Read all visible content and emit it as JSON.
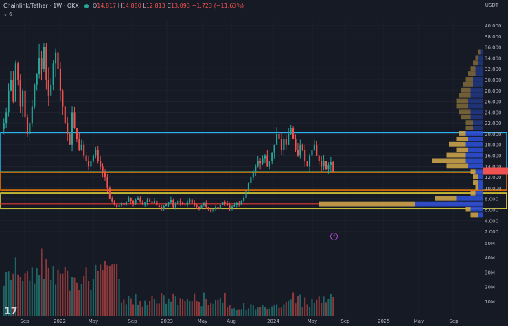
{
  "header": {
    "symbol": "Chainlink/Tether · 1W · OKX",
    "open_label": "O",
    "open": "14.817",
    "high_label": "H",
    "high": "14.880",
    "low_label": "L",
    "low": "12.813",
    "close_label": "C",
    "close": "13.093",
    "change": "−1.723 (−11.63%)",
    "indicator_toggle": "⌄ 6"
  },
  "currency_label": "USDT",
  "logo": "17",
  "colors": {
    "background": "#161a25",
    "up": "#26a69a",
    "down": "#ef5350",
    "blue_zone": "#29b6f6",
    "orange_zone": "#f57c00",
    "yellow_zone": "#f0e03a",
    "vp_up": "#2b4fd4",
    "vp_down": "#c9a24a"
  },
  "chart_data": {
    "type": "candlestick",
    "title": "Chainlink/Tether · 1W · OKX",
    "price_axis": {
      "ylim": [
        1,
        40
      ],
      "ticks": [
        "40.000",
        "38.000",
        "36.000",
        "34.000",
        "32.000",
        "30.000",
        "28.000",
        "26.000",
        "24.000",
        "22.000",
        "20.000",
        "18.000",
        "16.000",
        "14.000",
        "12.000",
        "10.000",
        "8.000",
        "6.000",
        "4.000",
        "2.000"
      ]
    },
    "volume_axis": {
      "ylim": [
        0,
        50
      ],
      "ticks": [
        "50M",
        "40M",
        "30M",
        "20M",
        "10M"
      ]
    },
    "x_tick_labels": [
      "Sep",
      "2022",
      "May",
      "Sep",
      "2023",
      "May",
      "Aug",
      "2024",
      "May",
      "Sep",
      "2025",
      "May",
      "Sep"
    ],
    "series": [
      {
        "period": "2021-08",
        "closes": [
          22,
          24,
          28,
          30,
          26,
          33,
          30,
          25,
          28,
          23,
          20,
          22
        ]
      },
      {
        "period": "2021-10",
        "closes": [
          25,
          29,
          31,
          34,
          32,
          36,
          30,
          27,
          29,
          33,
          35,
          32
        ]
      },
      {
        "period": "2021-12",
        "closes": [
          28,
          25,
          22,
          20,
          18,
          24,
          21,
          19,
          17,
          18,
          16,
          15
        ]
      },
      {
        "period": "2022-03",
        "closes": [
          14,
          15,
          16,
          17,
          15,
          14,
          13,
          12,
          10,
          8,
          7.5,
          7
        ]
      },
      {
        "period": "2022-06",
        "closes": [
          6.5,
          6.8,
          7.2,
          6.9,
          7.5,
          8.1,
          7.6,
          7.1,
          7.8,
          8.2,
          7.4,
          7.0
        ]
      },
      {
        "period": "2022-09",
        "closes": [
          7.3,
          7.9,
          7.5,
          7.2,
          7.6,
          6.8,
          6.5,
          6.2,
          6.7,
          7.0,
          7.3,
          7.8
        ]
      },
      {
        "period": "2023-01",
        "closes": [
          6.4,
          7.1,
          7.6,
          7.3,
          7.0,
          6.8,
          7.4,
          7.9,
          7.2,
          6.9,
          6.6,
          6.3
        ]
      },
      {
        "period": "2023-05",
        "closes": [
          6.8,
          7.2,
          6.5,
          6.0,
          5.6,
          6.1,
          6.5,
          6.2,
          6.9,
          7.4,
          7.1,
          6.8
        ]
      },
      {
        "period": "2023-08",
        "closes": [
          6.3,
          6.6,
          6.9,
          7.2,
          7.0,
          7.6,
          8.2,
          9.5,
          11,
          12,
          13,
          14
        ]
      },
      {
        "period": "2023-11",
        "closes": [
          15,
          14.5,
          15.5,
          16,
          14,
          15,
          16.5,
          18,
          20,
          19,
          17,
          19
        ]
      },
      {
        "period": "2024-02",
        "closes": [
          18,
          20,
          21,
          19,
          17,
          16,
          18,
          17,
          15,
          14,
          16,
          17
        ]
      },
      {
        "period": "2024-05",
        "closes": [
          18,
          16,
          15,
          14,
          15,
          13.5,
          14.2,
          14.8,
          13.1
        ]
      }
    ],
    "zones": [
      {
        "name": "blue",
        "from": 13.0,
        "to": 20.2
      },
      {
        "name": "orange",
        "from": 9.6,
        "to": 12.9
      },
      {
        "name": "yellow",
        "from": 6.2,
        "to": 9.1
      }
    ],
    "horizontal_lines": [
      {
        "color": "green",
        "value": 13.0
      },
      {
        "color": "red",
        "value": 7.1
      }
    ],
    "volume_profile": [
      {
        "price": 35,
        "up": 1,
        "down": 1
      },
      {
        "price": 34,
        "up": 2,
        "down": 1
      },
      {
        "price": 33,
        "up": 2,
        "down": 2
      },
      {
        "price": 32,
        "up": 3,
        "down": 2
      },
      {
        "price": 31,
        "up": 3,
        "down": 3
      },
      {
        "price": 30,
        "up": 4,
        "down": 3
      },
      {
        "price": 29,
        "up": 4,
        "down": 4
      },
      {
        "price": 28,
        "up": 5,
        "down": 4
      },
      {
        "price": 27,
        "up": 5,
        "down": 5
      },
      {
        "price": 26,
        "up": 6,
        "down": 5
      },
      {
        "price": 25,
        "up": 6,
        "down": 5
      },
      {
        "price": 24,
        "up": 5,
        "down": 5
      },
      {
        "price": 23,
        "up": 5,
        "down": 4
      },
      {
        "price": 22,
        "up": 4,
        "down": 3
      },
      {
        "price": 21,
        "up": 4,
        "down": 3
      },
      {
        "price": 20,
        "up": 7,
        "down": 3
      },
      {
        "price": 19,
        "up": 6,
        "down": 5
      },
      {
        "price": 18,
        "up": 7,
        "down": 7
      },
      {
        "price": 17,
        "up": 6,
        "down": 5
      },
      {
        "price": 16,
        "up": 7,
        "down": 8
      },
      {
        "price": 15,
        "up": 7,
        "down": 14
      },
      {
        "price": 14,
        "up": 6,
        "down": 9
      },
      {
        "price": 13,
        "up": 3,
        "down": 2
      },
      {
        "price": 12,
        "up": 2,
        "down": 2
      },
      {
        "price": 11,
        "up": 2,
        "down": 2
      },
      {
        "price": 10,
        "up": 2,
        "down": 1
      },
      {
        "price": 9,
        "up": 3,
        "down": 2
      },
      {
        "price": 8,
        "up": 11,
        "down": 9
      },
      {
        "price": 7,
        "up": 28,
        "down": 40
      },
      {
        "price": 6,
        "up": 5,
        "down": 2
      },
      {
        "price": 5,
        "up": 2,
        "down": 3
      }
    ]
  }
}
